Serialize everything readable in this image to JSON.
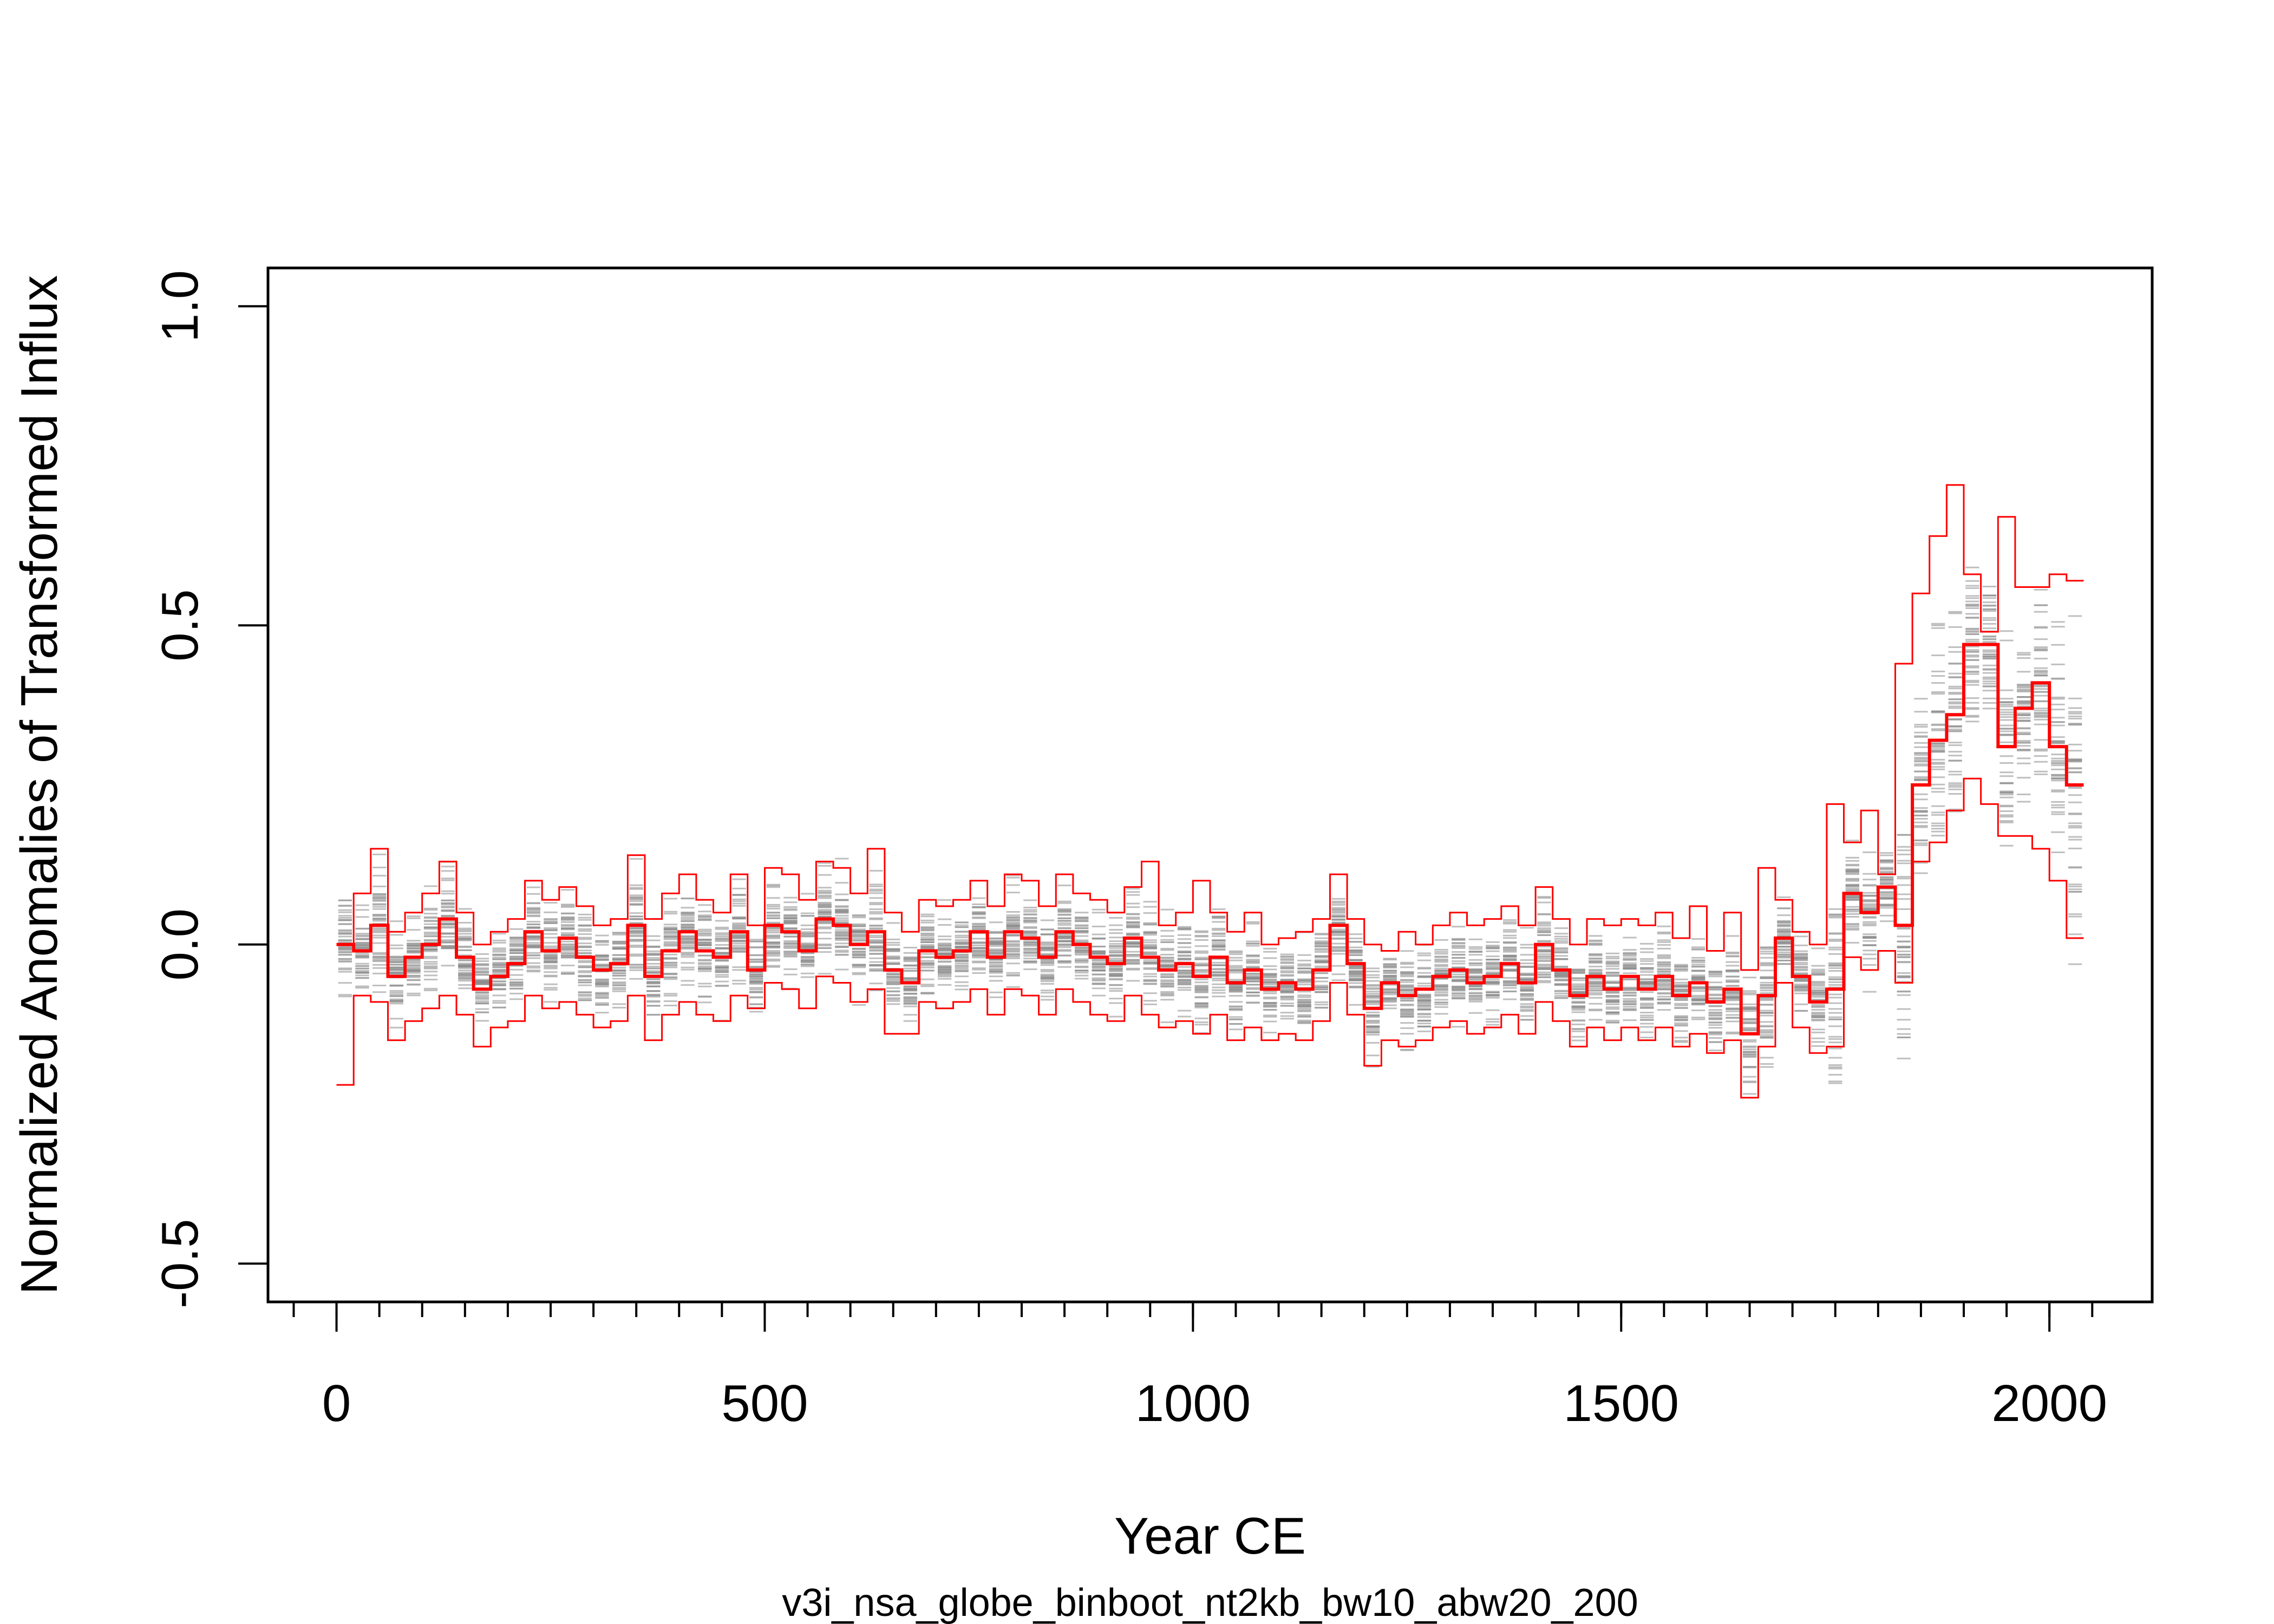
{
  "chart_data": {
    "type": "line",
    "title": "",
    "xlabel": "Year CE",
    "ylabel": "Normalized Anomalies of Transformed Influx",
    "subtitle": "v3i_nsa_globe_binboot_nt2kb_bw10_abw20_200",
    "xlim": [
      -80,
      2120
    ],
    "ylim": [
      -0.56,
      1.06
    ],
    "x_ticks": [
      0,
      500,
      1000,
      1500,
      2000
    ],
    "x_tick_labels": [
      "0",
      "500",
      "1000",
      "1500",
      "2000"
    ],
    "x_minor_ticks_step": 50,
    "y_ticks": [
      -0.5,
      0.0,
      0.5,
      1.0
    ],
    "y_tick_labels": [
      "-0.5",
      "0.0",
      "0.5",
      "1.0"
    ],
    "grid": false,
    "bin_width_years": 20,
    "series_style": {
      "median": {
        "color": "#ff0000",
        "width": 6
      },
      "bounds": {
        "color": "#ff0000",
        "width": 3
      },
      "ensemble": {
        "color": "#8a8a8a"
      }
    },
    "median_x": [
      0,
      20,
      40,
      60,
      80,
      100,
      120,
      140,
      160,
      180,
      200,
      220,
      240,
      260,
      280,
      300,
      320,
      340,
      360,
      380,
      400,
      420,
      440,
      460,
      480,
      500,
      520,
      540,
      560,
      580,
      600,
      620,
      640,
      660,
      680,
      700,
      720,
      740,
      760,
      780,
      800,
      820,
      840,
      860,
      880,
      900,
      920,
      940,
      960,
      980,
      1000,
      1020,
      1040,
      1060,
      1080,
      1100,
      1120,
      1140,
      1160,
      1180,
      1200,
      1220,
      1240,
      1260,
      1280,
      1300,
      1320,
      1340,
      1360,
      1380,
      1400,
      1420,
      1440,
      1460,
      1480,
      1500,
      1520,
      1540,
      1560,
      1580,
      1600,
      1620,
      1640,
      1660,
      1680,
      1700,
      1720,
      1740,
      1760,
      1780,
      1800,
      1820,
      1840,
      1860,
      1880,
      1900,
      1920,
      1940,
      1960,
      1980,
      2000,
      2020
    ],
    "median": [
      0.0,
      -0.01,
      0.03,
      -0.05,
      -0.02,
      0.0,
      0.04,
      -0.02,
      -0.07,
      -0.05,
      -0.03,
      0.02,
      -0.01,
      0.01,
      -0.02,
      -0.04,
      -0.03,
      0.03,
      -0.05,
      -0.01,
      0.02,
      -0.01,
      -0.02,
      0.02,
      -0.04,
      0.03,
      0.02,
      -0.01,
      0.04,
      0.03,
      0.0,
      0.02,
      -0.04,
      -0.06,
      -0.01,
      -0.02,
      -0.01,
      0.02,
      -0.02,
      0.02,
      0.01,
      -0.02,
      0.02,
      0.0,
      -0.02,
      -0.03,
      0.01,
      -0.02,
      -0.04,
      -0.03,
      -0.05,
      -0.02,
      -0.06,
      -0.04,
      -0.07,
      -0.06,
      -0.07,
      -0.04,
      0.03,
      -0.03,
      -0.1,
      -0.06,
      -0.08,
      -0.07,
      -0.05,
      -0.04,
      -0.06,
      -0.05,
      -0.03,
      -0.06,
      0.0,
      -0.04,
      -0.08,
      -0.05,
      -0.07,
      -0.05,
      -0.07,
      -0.05,
      -0.08,
      -0.06,
      -0.09,
      -0.07,
      -0.14,
      -0.08,
      0.01,
      -0.05,
      -0.09,
      -0.07,
      0.08,
      0.05,
      0.09,
      0.03,
      0.25,
      0.32,
      0.36,
      0.47,
      0.47,
      0.31,
      0.37,
      0.41,
      0.31,
      0.25
    ],
    "lower": [
      -0.22,
      -0.08,
      -0.09,
      -0.15,
      -0.12,
      -0.1,
      -0.08,
      -0.11,
      -0.16,
      -0.13,
      -0.12,
      -0.08,
      -0.1,
      -0.09,
      -0.11,
      -0.13,
      -0.12,
      -0.08,
      -0.15,
      -0.11,
      -0.09,
      -0.11,
      -0.12,
      -0.08,
      -0.1,
      -0.06,
      -0.07,
      -0.1,
      -0.05,
      -0.06,
      -0.09,
      -0.07,
      -0.14,
      -0.14,
      -0.09,
      -0.1,
      -0.09,
      -0.07,
      -0.11,
      -0.07,
      -0.08,
      -0.11,
      -0.07,
      -0.09,
      -0.11,
      -0.12,
      -0.08,
      -0.11,
      -0.13,
      -0.12,
      -0.14,
      -0.11,
      -0.15,
      -0.13,
      -0.15,
      -0.14,
      -0.15,
      -0.12,
      -0.06,
      -0.11,
      -0.19,
      -0.15,
      -0.16,
      -0.15,
      -0.13,
      -0.12,
      -0.14,
      -0.13,
      -0.11,
      -0.14,
      -0.09,
      -0.12,
      -0.16,
      -0.13,
      -0.15,
      -0.13,
      -0.15,
      -0.13,
      -0.16,
      -0.14,
      -0.17,
      -0.15,
      -0.24,
      -0.16,
      -0.06,
      -0.13,
      -0.17,
      -0.16,
      -0.02,
      -0.04,
      -0.01,
      -0.06,
      0.13,
      0.16,
      0.21,
      0.26,
      0.22,
      0.17,
      0.17,
      0.15,
      0.1,
      0.01
    ],
    "upper": [
      0.0,
      0.08,
      0.15,
      0.02,
      0.05,
      0.08,
      0.13,
      0.05,
      0.0,
      0.02,
      0.04,
      0.1,
      0.07,
      0.09,
      0.06,
      0.03,
      0.04,
      0.14,
      0.04,
      0.08,
      0.11,
      0.07,
      0.05,
      0.11,
      0.03,
      0.12,
      0.11,
      0.07,
      0.13,
      0.12,
      0.08,
      0.15,
      0.05,
      0.02,
      0.07,
      0.06,
      0.07,
      0.1,
      0.06,
      0.11,
      0.1,
      0.06,
      0.11,
      0.08,
      0.07,
      0.05,
      0.09,
      0.13,
      0.03,
      0.05,
      0.1,
      0.05,
      0.02,
      0.05,
      0.0,
      0.01,
      0.02,
      0.04,
      0.11,
      0.04,
      0.0,
      -0.01,
      0.02,
      0.0,
      0.03,
      0.05,
      0.03,
      0.04,
      0.06,
      0.03,
      0.09,
      0.04,
      0.0,
      0.04,
      0.03,
      0.04,
      0.03,
      0.05,
      0.01,
      0.06,
      -0.01,
      0.05,
      -0.04,
      0.12,
      0.07,
      0.02,
      0.0,
      0.22,
      0.16,
      0.21,
      0.11,
      0.44,
      0.55,
      0.64,
      0.72,
      0.58,
      0.49,
      0.67,
      0.56,
      0.56,
      0.58,
      0.57
    ]
  }
}
